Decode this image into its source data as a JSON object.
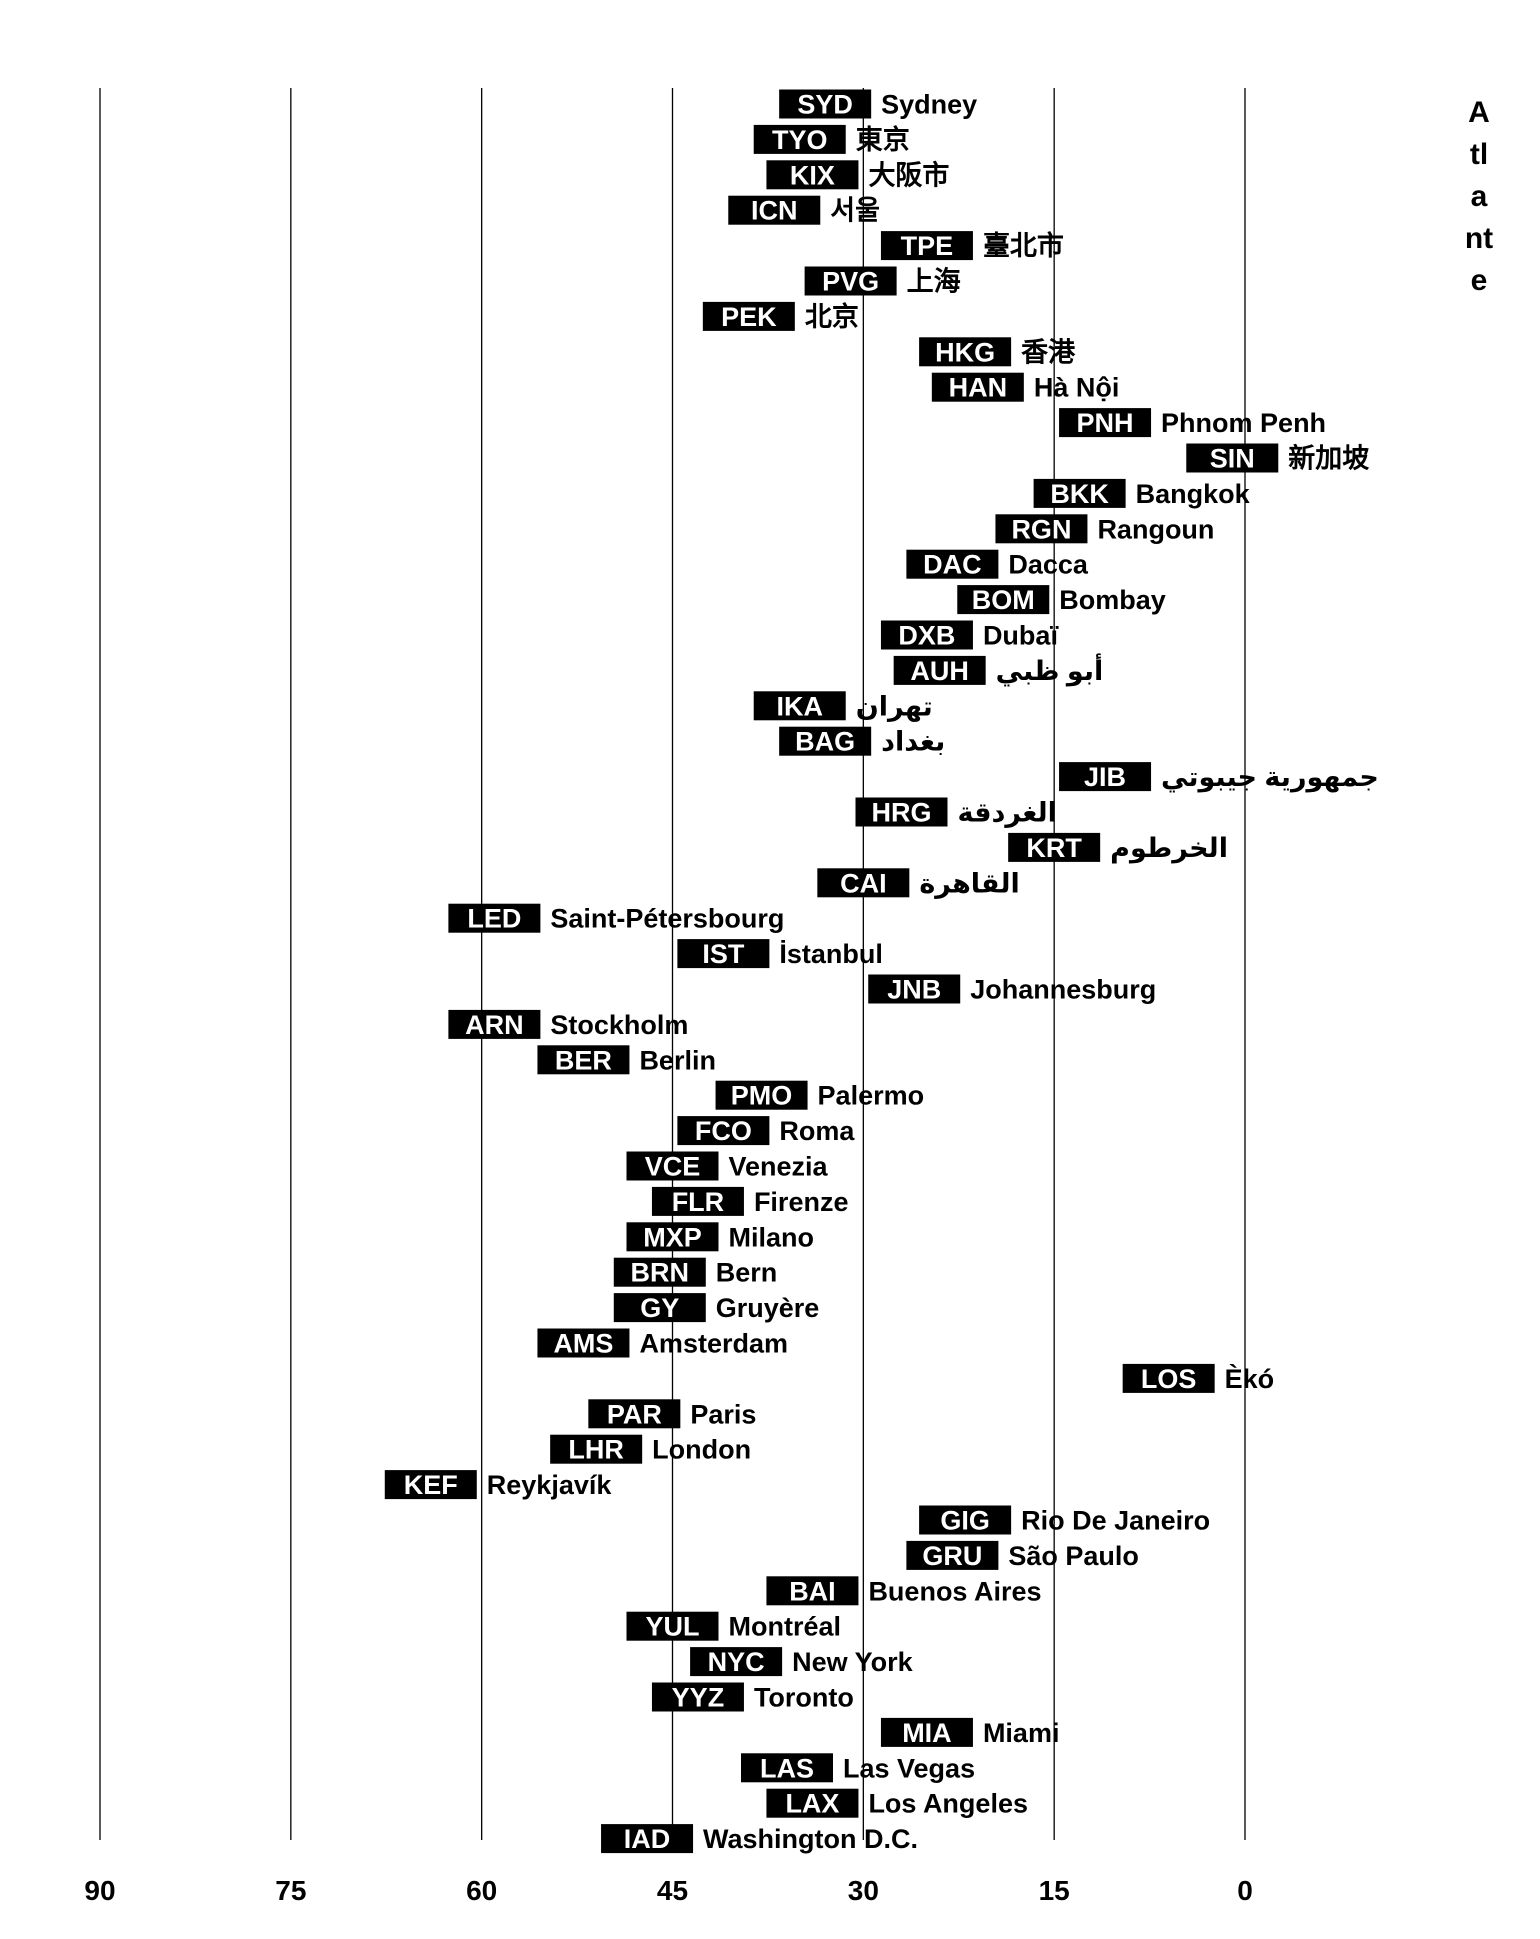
{
  "chart_data": {
    "type": "scatter",
    "title": "Atlante",
    "xlim": [
      90,
      0
    ],
    "x_ticks": [
      "90",
      "75",
      "60",
      "45",
      "30",
      "15",
      "0"
    ],
    "grid": "vertical",
    "colors": {
      "label_bg": "#000000",
      "label_text": "#ffffff",
      "text": "#000000",
      "grid": "#000000"
    },
    "points": [
      {
        "code": "SYD",
        "city": "Sydney",
        "x": 33
      },
      {
        "code": "TYO",
        "city": "東京",
        "x": 35
      },
      {
        "code": "KIX",
        "city": "大阪市",
        "x": 34
      },
      {
        "code": "ICN",
        "city": "서울",
        "x": 37
      },
      {
        "code": "TPE",
        "city": "臺北市",
        "x": 25
      },
      {
        "code": "PVG",
        "city": "上海",
        "x": 31
      },
      {
        "code": "PEK",
        "city": "北京",
        "x": 39
      },
      {
        "code": "HKG",
        "city": "香港",
        "x": 22
      },
      {
        "code": "HAN",
        "city": "Hà Nội",
        "x": 21
      },
      {
        "code": "PNH",
        "city": "Phnom Penh",
        "x": 11
      },
      {
        "code": "SIN",
        "city": "新加坡",
        "x": 1
      },
      {
        "code": "BKK",
        "city": "Bangkok",
        "x": 13
      },
      {
        "code": "RGN",
        "city": "Rangoun",
        "x": 16
      },
      {
        "code": "DAC",
        "city": "Dacca",
        "x": 23
      },
      {
        "code": "BOM",
        "city": "Bombay",
        "x": 19
      },
      {
        "code": "DXB",
        "city": "Dubaï",
        "x": 25
      },
      {
        "code": "AUH",
        "city": "أبو ظبي",
        "x": 24
      },
      {
        "code": "IKA",
        "city": "تهران",
        "x": 35
      },
      {
        "code": "BAG",
        "city": "بغداد",
        "x": 33
      },
      {
        "code": "JIB",
        "city": "جمهورية جيبوتي",
        "x": 11
      },
      {
        "code": "HRG",
        "city": "الغردقة",
        "x": 27
      },
      {
        "code": "KRT",
        "city": "الخرطوم",
        "x": 15
      },
      {
        "code": "CAI",
        "city": "القاهرة",
        "x": 30
      },
      {
        "code": "LED",
        "city": "Saint-Pétersbourg",
        "x": 59
      },
      {
        "code": "IST",
        "city": "İstanbul",
        "x": 41
      },
      {
        "code": "JNB",
        "city": "Johannesburg",
        "x": 26
      },
      {
        "code": "ARN",
        "city": "Stockholm",
        "x": 59
      },
      {
        "code": "BER",
        "city": "Berlin",
        "x": 52
      },
      {
        "code": "PMO",
        "city": "Palermo",
        "x": 38
      },
      {
        "code": "FCO",
        "city": "Roma",
        "x": 41
      },
      {
        "code": "VCE",
        "city": "Venezia",
        "x": 45
      },
      {
        "code": "FLR",
        "city": "Firenze",
        "x": 43
      },
      {
        "code": "MXP",
        "city": "Milano",
        "x": 45
      },
      {
        "code": "BRN",
        "city": "Bern",
        "x": 46
      },
      {
        "code": "GY",
        "city": "Gruyère",
        "x": 46
      },
      {
        "code": "AMS",
        "city": "Amsterdam",
        "x": 52
      },
      {
        "code": "LOS",
        "city": "Èkó",
        "x": 6
      },
      {
        "code": "PAR",
        "city": "Paris",
        "x": 48
      },
      {
        "code": "LHR",
        "city": "London",
        "x": 51
      },
      {
        "code": "KEF",
        "city": "Reykjavík",
        "x": 64
      },
      {
        "code": "GIG",
        "city": "Rio De Janeiro",
        "x": 22
      },
      {
        "code": "GRU",
        "city": "São Paulo",
        "x": 23
      },
      {
        "code": "BAI",
        "city": "Buenos Aires",
        "x": 34
      },
      {
        "code": "YUL",
        "city": "Montréal",
        "x": 45
      },
      {
        "code": "NYC",
        "city": "New York",
        "x": 40
      },
      {
        "code": "YYZ",
        "city": "Toronto",
        "x": 43
      },
      {
        "code": "MIA",
        "city": "Miami",
        "x": 25
      },
      {
        "code": "LAS",
        "city": "Las Vegas",
        "x": 36
      },
      {
        "code": "LAX",
        "city": "Los Angeles",
        "x": 34
      },
      {
        "code": "IAD",
        "city": "Washington D.C.",
        "x": 47
      }
    ]
  }
}
